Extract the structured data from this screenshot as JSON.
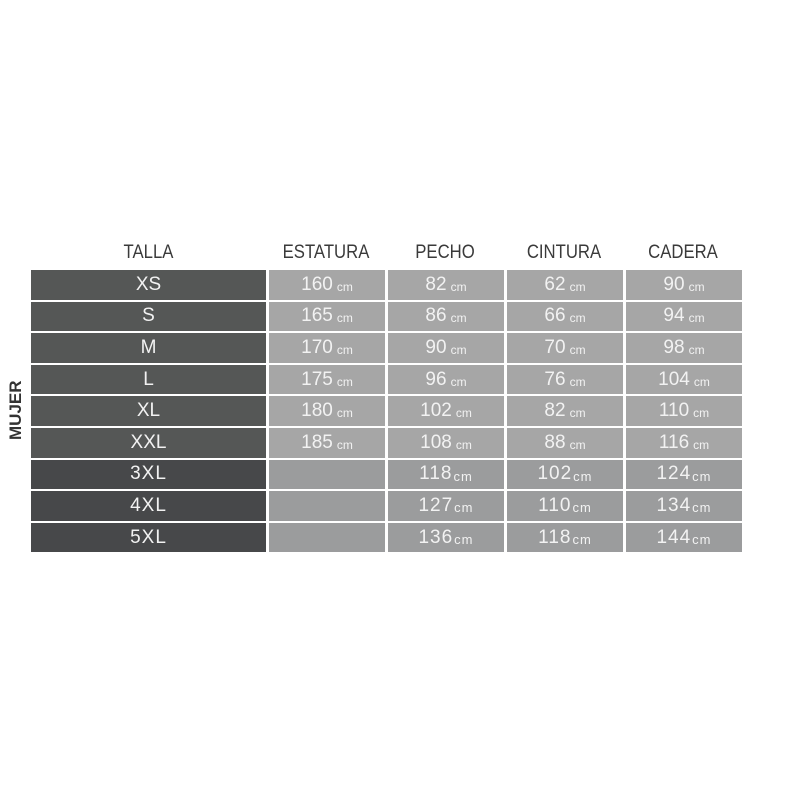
{
  "side_label": "MUJER",
  "headers": [
    "TALLA",
    "ESTATURA",
    "PECHO",
    "CINTURA",
    "CADERA"
  ],
  "unit": "cm",
  "rows": [
    {
      "talla": "XS",
      "estatura": "160",
      "pecho": "82",
      "cintura": "62",
      "cadera": "90"
    },
    {
      "talla": "S",
      "estatura": "165",
      "pecho": "86",
      "cintura": "66",
      "cadera": "94"
    },
    {
      "talla": "M",
      "estatura": "170",
      "pecho": "90",
      "cintura": "70",
      "cadera": "98"
    },
    {
      "talla": "L",
      "estatura": "175",
      "pecho": "96",
      "cintura": "76",
      "cadera": "104"
    },
    {
      "talla": "XL",
      "estatura": "180",
      "pecho": "102",
      "cintura": "82",
      "cadera": "110"
    },
    {
      "talla": "XXL",
      "estatura": "185",
      "pecho": "108",
      "cintura": "88",
      "cadera": "116"
    },
    {
      "talla": "3XL",
      "estatura": "",
      "pecho": "118",
      "cintura": "102",
      "cadera": "124"
    },
    {
      "talla": "4XL",
      "estatura": "",
      "pecho": "127",
      "cintura": "110",
      "cadera": "134"
    },
    {
      "talla": "5XL",
      "estatura": "",
      "pecho": "136",
      "cintura": "118",
      "cadera": "144"
    }
  ],
  "colors": {
    "talla_cell": "#555756",
    "talla_cell_plus": "#47484a",
    "value_cell": "#a6a6a6",
    "value_cell_plus": "#9b9c9d",
    "cell_text": "#f2f2f2"
  }
}
